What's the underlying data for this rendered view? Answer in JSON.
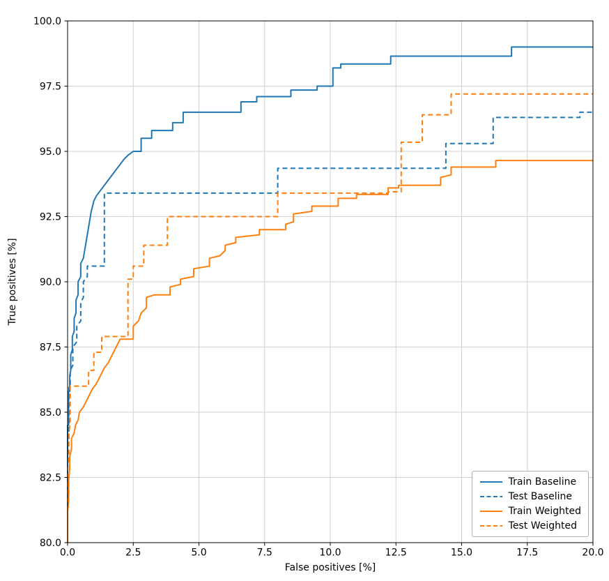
{
  "figure": {
    "background": "#ffffff"
  },
  "chart_data": {
    "type": "line",
    "title": "",
    "xlabel": "False positives [%]",
    "ylabel": "True positives [%]",
    "xlim": [
      0,
      20
    ],
    "ylim": [
      80,
      100
    ],
    "grid": true,
    "legend_position": "lower right",
    "x_ticks": {
      "values": [
        0,
        2.5,
        5,
        7.5,
        10,
        12.5,
        15,
        17.5,
        20
      ],
      "labels": [
        "0.0",
        "2.5",
        "5.0",
        "7.5",
        "10.0",
        "12.5",
        "15.0",
        "17.5",
        "20.0"
      ]
    },
    "y_ticks": {
      "values": [
        80,
        82.5,
        85,
        87.5,
        90,
        92.5,
        95,
        97.5,
        100
      ],
      "labels": [
        "80.0",
        "82.5",
        "85.0",
        "87.5",
        "90.0",
        "92.5",
        "95.0",
        "97.5",
        "100.0"
      ]
    },
    "colors": {
      "grid": "#d0d0d0",
      "spine": "#000000",
      "tick_text": "#000000",
      "blue": "#1f77b4",
      "orange": "#ff7f0e"
    },
    "series": [
      {
        "name": "Train Baseline",
        "color": "#1f77b4",
        "style": "solid",
        "points": [
          [
            0,
            80
          ],
          [
            0,
            84.5
          ],
          [
            0.04,
            84.5
          ],
          [
            0.04,
            85.8
          ],
          [
            0.08,
            85.8
          ],
          [
            0.08,
            86.4
          ],
          [
            0.12,
            86.6
          ],
          [
            0.12,
            87.2
          ],
          [
            0.18,
            87.4
          ],
          [
            0.18,
            87.9
          ],
          [
            0.25,
            88.1
          ],
          [
            0.25,
            88.6
          ],
          [
            0.32,
            88.8
          ],
          [
            0.32,
            89.3
          ],
          [
            0.4,
            89.5
          ],
          [
            0.4,
            90.0
          ],
          [
            0.5,
            90.2
          ],
          [
            0.5,
            90.7
          ],
          [
            0.6,
            90.9
          ],
          [
            0.65,
            91.2
          ],
          [
            0.7,
            91.5
          ],
          [
            0.75,
            91.8
          ],
          [
            0.8,
            92.1
          ],
          [
            0.85,
            92.4
          ],
          [
            0.9,
            92.7
          ],
          [
            0.95,
            92.9
          ],
          [
            1.0,
            93.1
          ],
          [
            1.1,
            93.3
          ],
          [
            1.25,
            93.5
          ],
          [
            1.4,
            93.7
          ],
          [
            1.55,
            93.9
          ],
          [
            1.7,
            94.1
          ],
          [
            1.85,
            94.3
          ],
          [
            2.0,
            94.5
          ],
          [
            2.15,
            94.7
          ],
          [
            2.3,
            94.85
          ],
          [
            2.5,
            95.0
          ],
          [
            2.8,
            95.0
          ],
          [
            2.8,
            95.5
          ],
          [
            3.2,
            95.5
          ],
          [
            3.2,
            95.8
          ],
          [
            4.0,
            95.8
          ],
          [
            4.0,
            96.1
          ],
          [
            4.4,
            96.1
          ],
          [
            4.4,
            96.5
          ],
          [
            6.6,
            96.5
          ],
          [
            6.6,
            96.9
          ],
          [
            7.2,
            96.9
          ],
          [
            7.2,
            97.1
          ],
          [
            8.5,
            97.1
          ],
          [
            8.5,
            97.35
          ],
          [
            9.5,
            97.35
          ],
          [
            9.5,
            97.5
          ],
          [
            10.1,
            97.5
          ],
          [
            10.1,
            98.2
          ],
          [
            10.4,
            98.2
          ],
          [
            10.4,
            98.35
          ],
          [
            12.3,
            98.35
          ],
          [
            12.3,
            98.65
          ],
          [
            16.9,
            98.65
          ],
          [
            16.9,
            99.0
          ],
          [
            20,
            99.0
          ]
        ]
      },
      {
        "name": "Test Baseline",
        "color": "#1f77b4",
        "style": "dashed",
        "points": [
          [
            0,
            80
          ],
          [
            0,
            84.0
          ],
          [
            0.05,
            84.0
          ],
          [
            0.05,
            86.0
          ],
          [
            0.1,
            86.0
          ],
          [
            0.1,
            86.6
          ],
          [
            0.2,
            86.8
          ],
          [
            0.2,
            87.5
          ],
          [
            0.35,
            87.7
          ],
          [
            0.35,
            88.3
          ],
          [
            0.5,
            88.5
          ],
          [
            0.5,
            89.2
          ],
          [
            0.6,
            89.4
          ],
          [
            0.6,
            90.0
          ],
          [
            0.75,
            90.2
          ],
          [
            0.75,
            90.6
          ],
          [
            1.4,
            90.6
          ],
          [
            1.4,
            93.4
          ],
          [
            8.0,
            93.4
          ],
          [
            8.0,
            94.35
          ],
          [
            14.4,
            94.35
          ],
          [
            14.4,
            95.3
          ],
          [
            16.2,
            95.3
          ],
          [
            16.2,
            96.3
          ],
          [
            19.5,
            96.3
          ],
          [
            19.5,
            96.5
          ],
          [
            20,
            96.5
          ]
        ]
      },
      {
        "name": "Train Weighted",
        "color": "#ff7f0e",
        "style": "solid",
        "points": [
          [
            0,
            80
          ],
          [
            0,
            81.2
          ],
          [
            0.04,
            81.6
          ],
          [
            0.04,
            82.4
          ],
          [
            0.08,
            82.8
          ],
          [
            0.08,
            83.3
          ],
          [
            0.15,
            83.6
          ],
          [
            0.15,
            84.0
          ],
          [
            0.25,
            84.2
          ],
          [
            0.3,
            84.5
          ],
          [
            0.4,
            84.7
          ],
          [
            0.45,
            85.0
          ],
          [
            0.6,
            85.2
          ],
          [
            0.7,
            85.4
          ],
          [
            0.8,
            85.6
          ],
          [
            0.95,
            85.9
          ],
          [
            1.1,
            86.1
          ],
          [
            1.25,
            86.4
          ],
          [
            1.4,
            86.7
          ],
          [
            1.55,
            86.9
          ],
          [
            1.7,
            87.2
          ],
          [
            1.85,
            87.5
          ],
          [
            2.0,
            87.8
          ],
          [
            2.5,
            87.8
          ],
          [
            2.5,
            88.3
          ],
          [
            2.7,
            88.5
          ],
          [
            2.8,
            88.8
          ],
          [
            3.0,
            89.0
          ],
          [
            3.0,
            89.4
          ],
          [
            3.3,
            89.5
          ],
          [
            3.9,
            89.5
          ],
          [
            3.9,
            89.8
          ],
          [
            4.3,
            89.9
          ],
          [
            4.3,
            90.1
          ],
          [
            4.8,
            90.2
          ],
          [
            4.8,
            90.5
          ],
          [
            5.4,
            90.6
          ],
          [
            5.4,
            90.9
          ],
          [
            5.8,
            91.0
          ],
          [
            6.0,
            91.2
          ],
          [
            6.0,
            91.4
          ],
          [
            6.4,
            91.5
          ],
          [
            6.4,
            91.7
          ],
          [
            7.3,
            91.8
          ],
          [
            7.3,
            92.0
          ],
          [
            8.3,
            92.0
          ],
          [
            8.3,
            92.2
          ],
          [
            8.6,
            92.3
          ],
          [
            8.6,
            92.6
          ],
          [
            9.3,
            92.7
          ],
          [
            9.3,
            92.9
          ],
          [
            10.3,
            92.9
          ],
          [
            10.3,
            93.2
          ],
          [
            11.0,
            93.2
          ],
          [
            11.0,
            93.35
          ],
          [
            12.2,
            93.35
          ],
          [
            12.2,
            93.6
          ],
          [
            12.6,
            93.6
          ],
          [
            12.6,
            93.7
          ],
          [
            14.2,
            93.7
          ],
          [
            14.2,
            94.0
          ],
          [
            14.6,
            94.1
          ],
          [
            14.6,
            94.4
          ],
          [
            16.3,
            94.4
          ],
          [
            16.3,
            94.65
          ],
          [
            20,
            94.65
          ]
        ]
      },
      {
        "name": "Test Weighted",
        "color": "#ff7f0e",
        "style": "dashed",
        "points": [
          [
            0,
            80
          ],
          [
            0,
            82.8
          ],
          [
            0.05,
            83.3
          ],
          [
            0.05,
            84.2
          ],
          [
            0.1,
            84.6
          ],
          [
            0.1,
            86.0
          ],
          [
            0.8,
            86.0
          ],
          [
            0.8,
            86.6
          ],
          [
            1.0,
            86.6
          ],
          [
            1.0,
            87.3
          ],
          [
            1.3,
            87.3
          ],
          [
            1.3,
            87.9
          ],
          [
            2.3,
            87.9
          ],
          [
            2.3,
            90.1
          ],
          [
            2.5,
            90.1
          ],
          [
            2.5,
            90.6
          ],
          [
            2.9,
            90.6
          ],
          [
            2.9,
            91.4
          ],
          [
            3.8,
            91.4
          ],
          [
            3.8,
            92.5
          ],
          [
            8.0,
            92.5
          ],
          [
            8.0,
            93.4
          ],
          [
            12.2,
            93.4
          ],
          [
            12.2,
            93.45
          ],
          [
            12.7,
            93.45
          ],
          [
            12.7,
            95.35
          ],
          [
            13.5,
            95.35
          ],
          [
            13.5,
            96.4
          ],
          [
            14.6,
            96.4
          ],
          [
            14.6,
            97.2
          ],
          [
            20,
            97.2
          ]
        ]
      }
    ]
  }
}
